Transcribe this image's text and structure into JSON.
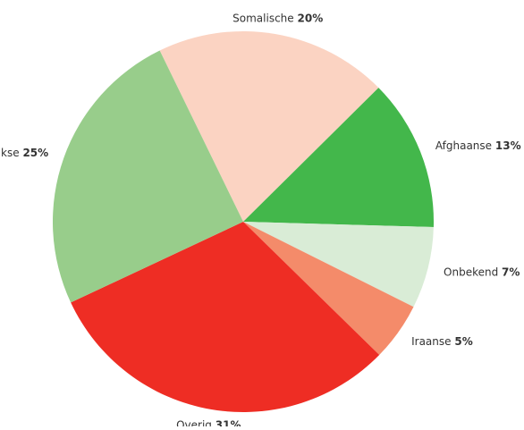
{
  "chart_data": {
    "type": "pie",
    "categories": [
      "Somalische",
      "Afghaanse",
      "Onbekend",
      "Iraanse",
      "Overig",
      "Iraakse"
    ],
    "values": [
      20,
      13,
      7,
      5,
      31,
      25
    ],
    "value_labels": [
      "20%",
      "13%",
      "7%",
      "5%",
      "31%",
      "25%"
    ],
    "colors": [
      "#fbd3c2",
      "#43b74b",
      "#d9ecd6",
      "#f48b6a",
      "#ee2d24",
      "#98cd8b"
    ]
  }
}
